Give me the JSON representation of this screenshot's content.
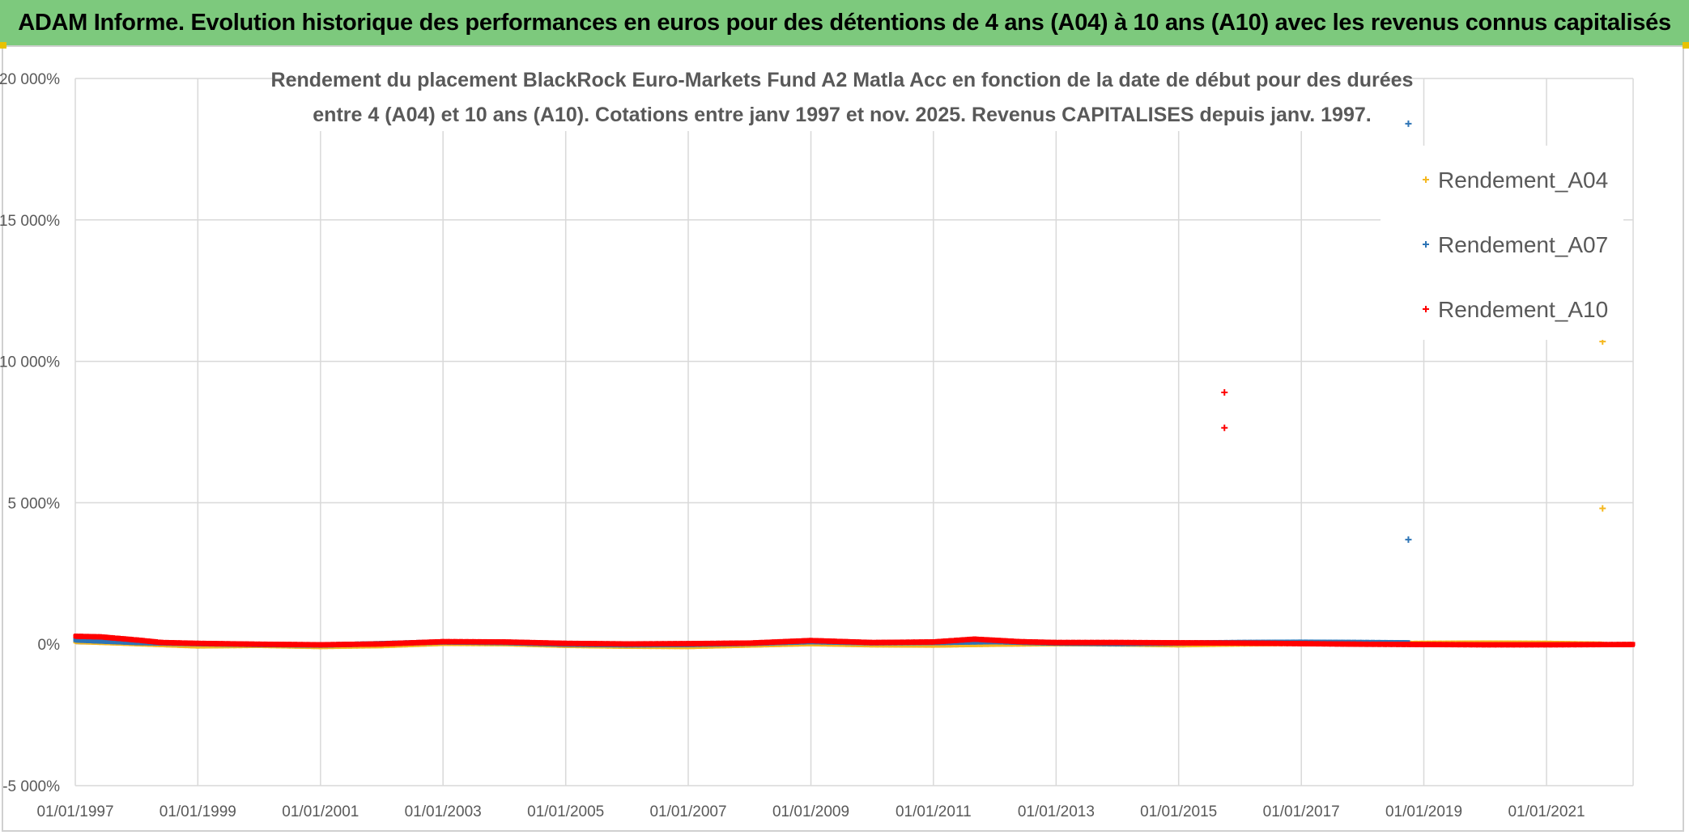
{
  "banner": {
    "title": "ADAM Informe. Evolution historique des performances en euros pour des détentions de 4 ans (A04) à 10 ans (A10) avec les revenus connus capitalisés"
  },
  "chart_data": {
    "type": "scatter",
    "title_line1": "Rendement du placement BlackRock Euro-Markets Fund A2 Matla Acc en fonction de la date de début pour des durées",
    "title_line2": "entre 4 (A04) et 10 ans (A10). Cotations entre janv 1997 et nov. 2025. Revenus CAPITALISES depuis janv. 1997.",
    "xlabel": "",
    "ylabel": "",
    "grid": true,
    "legend_position": "right",
    "xlim": [
      "1997-01-01",
      "2022-06-01"
    ],
    "ylim": [
      -5000,
      20000
    ],
    "y_ticks": [
      -5000,
      0,
      5000,
      10000,
      15000,
      20000
    ],
    "y_tick_labels": [
      "-5 000%",
      "0%",
      "5 000%",
      "10 000%",
      "15 000%",
      "20 000%"
    ],
    "x_ticks": [
      "1997-01-01",
      "1999-01-01",
      "2001-01-01",
      "2003-01-01",
      "2005-01-01",
      "2007-01-01",
      "2009-01-01",
      "2011-01-01",
      "2013-01-01",
      "2015-01-01",
      "2017-01-01",
      "2019-01-01",
      "2021-01-01"
    ],
    "x_tick_labels": [
      "01/01/1997",
      "01/01/1999",
      "01/01/2001",
      "01/01/2003",
      "01/01/2005",
      "01/01/2007",
      "01/01/2009",
      "01/01/2011",
      "01/01/2013",
      "01/01/2015",
      "01/01/2017",
      "01/01/2019",
      "01/01/2021"
    ],
    "series": [
      {
        "name": "Rendement_A04",
        "color": "#f5b820",
        "x_range": [
          "1997-01-01",
          "2021-12-01"
        ],
        "baseline": [
          [
            "1997-01-01",
            100
          ],
          [
            "1998-01-01",
            20
          ],
          [
            "1999-01-01",
            -60
          ],
          [
            "2000-01-01",
            -40
          ],
          [
            "2001-01-01",
            -80
          ],
          [
            "2002-01-01",
            -50
          ],
          [
            "2003-01-01",
            30
          ],
          [
            "2004-01-01",
            20
          ],
          [
            "2005-01-01",
            -40
          ],
          [
            "2006-01-01",
            -70
          ],
          [
            "2007-01-01",
            -80
          ],
          [
            "2008-01-01",
            -30
          ],
          [
            "2009-01-01",
            20
          ],
          [
            "2010-01-01",
            -20
          ],
          [
            "2011-01-01",
            -30
          ],
          [
            "2012-01-01",
            0
          ],
          [
            "2013-01-01",
            20
          ],
          [
            "2014-01-01",
            10
          ],
          [
            "2015-01-01",
            -20
          ],
          [
            "2016-01-01",
            10
          ],
          [
            "2017-01-01",
            30
          ],
          [
            "2018-01-01",
            20
          ],
          [
            "2019-01-01",
            30
          ],
          [
            "2020-01-01",
            40
          ],
          [
            "2021-01-01",
            30
          ],
          [
            "2021-12-01",
            0
          ]
        ],
        "outliers": [
          [
            "2021-12-01",
            10700
          ],
          [
            "2021-12-01",
            4800
          ]
        ]
      },
      {
        "name": "Rendement_A07",
        "color": "#2e75b6",
        "x_range": [
          "1997-01-01",
          "2018-10-01"
        ],
        "baseline": [
          [
            "1997-01-01",
            150
          ],
          [
            "1998-01-01",
            60
          ],
          [
            "1999-01-01",
            20
          ],
          [
            "2000-01-01",
            -10
          ],
          [
            "2001-01-01",
            -30
          ],
          [
            "2002-01-01",
            20
          ],
          [
            "2003-01-01",
            80
          ],
          [
            "2004-01-01",
            60
          ],
          [
            "2005-01-01",
            0
          ],
          [
            "2006-01-01",
            -20
          ],
          [
            "2007-01-01",
            -10
          ],
          [
            "2008-01-01",
            30
          ],
          [
            "2009-01-01",
            90
          ],
          [
            "2010-01-01",
            50
          ],
          [
            "2011-01-01",
            60
          ],
          [
            "2012-01-01",
            90
          ],
          [
            "2013-01-01",
            40
          ],
          [
            "2014-01-01",
            20
          ],
          [
            "2015-01-01",
            40
          ],
          [
            "2016-01-01",
            60
          ],
          [
            "2017-01-01",
            70
          ],
          [
            "2018-01-01",
            60
          ],
          [
            "2018-10-01",
            50
          ]
        ],
        "outliers": [
          [
            "2018-10-01",
            18400
          ],
          [
            "2018-10-01",
            3700
          ]
        ]
      },
      {
        "name": "Rendement_A10",
        "color": "#ff0000",
        "x_range": [
          "1997-01-01",
          "2022-06-01"
        ],
        "baseline": [
          [
            "1997-01-01",
            280
          ],
          [
            "1997-06-01",
            260
          ],
          [
            "1998-01-01",
            150
          ],
          [
            "1998-06-01",
            60
          ],
          [
            "1999-01-01",
            30
          ],
          [
            "2000-01-01",
            0
          ],
          [
            "2001-01-01",
            -20
          ],
          [
            "2002-01-01",
            10
          ],
          [
            "2003-01-01",
            90
          ],
          [
            "2004-01-01",
            80
          ],
          [
            "2005-01-01",
            30
          ],
          [
            "2006-01-01",
            10
          ],
          [
            "2007-01-01",
            20
          ],
          [
            "2008-01-01",
            40
          ],
          [
            "2009-01-01",
            130
          ],
          [
            "2010-01-01",
            60
          ],
          [
            "2011-01-01",
            80
          ],
          [
            "2011-09-01",
            180
          ],
          [
            "2012-06-01",
            90
          ],
          [
            "2013-01-01",
            60
          ],
          [
            "2014-01-01",
            60
          ],
          [
            "2015-01-01",
            50
          ],
          [
            "2016-01-01",
            40
          ],
          [
            "2017-01-01",
            20
          ],
          [
            "2018-01-01",
            0
          ],
          [
            "2019-01-01",
            -10
          ],
          [
            "2020-01-01",
            -20
          ],
          [
            "2021-01-01",
            -20
          ],
          [
            "2022-06-01",
            -10
          ]
        ],
        "outliers": [
          [
            "2015-10-01",
            8900
          ],
          [
            "2015-10-01",
            7650
          ]
        ]
      }
    ]
  }
}
